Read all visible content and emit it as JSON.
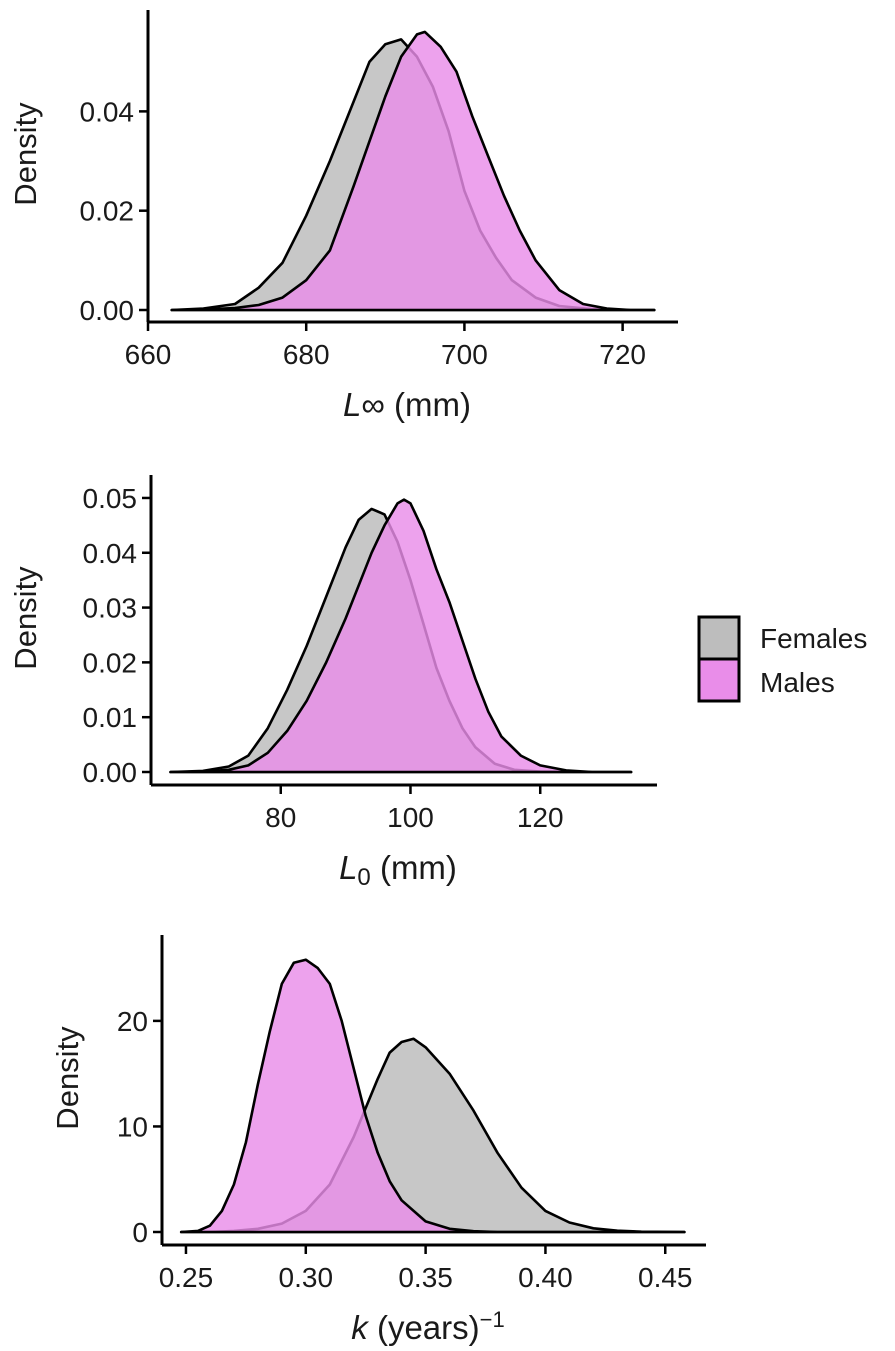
{
  "legend": {
    "items": [
      {
        "label": "Females",
        "color": "#bdbdbd"
      },
      {
        "label": "Males",
        "color": "#e98de9"
      }
    ]
  },
  "chart_data": [
    {
      "type": "area",
      "ylabel": "Density",
      "xlabel": {
        "main": "L",
        "sub": "∞",
        "unit": " (mm)"
      },
      "xlim": [
        660,
        727
      ],
      "ylim": [
        0,
        0.058
      ],
      "xticks": [
        660,
        680,
        700,
        720
      ],
      "xtick_labels": [
        "660",
        "680",
        "700",
        "720"
      ],
      "yticks": [
        0,
        0.02,
        0.04
      ],
      "ytick_labels": [
        "0.00",
        "0.02",
        "0.04"
      ],
      "series": [
        {
          "name": "Females",
          "color": "#bdbdbd",
          "x": [
            663,
            667,
            671,
            674,
            677,
            680,
            683,
            686,
            688,
            690,
            692,
            694,
            696,
            698,
            700,
            702,
            704,
            706,
            709,
            712,
            716,
            720,
            724
          ],
          "y": [
            0.0,
            0.0003,
            0.0012,
            0.0045,
            0.0095,
            0.019,
            0.03,
            0.042,
            0.05,
            0.0535,
            0.0545,
            0.051,
            0.045,
            0.036,
            0.024,
            0.016,
            0.0105,
            0.006,
            0.0025,
            0.0008,
            0.0002,
            0.0,
            0.0
          ]
        },
        {
          "name": "Males",
          "color": "#e98de9",
          "x": [
            663,
            667,
            671,
            674,
            677,
            680,
            683,
            686,
            688,
            690,
            692,
            694,
            695,
            697,
            699,
            701,
            703,
            705,
            707,
            709,
            712,
            715,
            718,
            721,
            724
          ],
          "y": [
            0.0,
            0.0001,
            0.0004,
            0.001,
            0.0025,
            0.006,
            0.012,
            0.025,
            0.034,
            0.043,
            0.051,
            0.0555,
            0.056,
            0.053,
            0.048,
            0.039,
            0.031,
            0.023,
            0.016,
            0.01,
            0.004,
            0.0012,
            0.0003,
            0.0,
            0.0
          ]
        }
      ]
    },
    {
      "type": "area",
      "ylabel": "Density",
      "xlabel": {
        "main": "L",
        "sub": "0",
        "unit": " (mm)"
      },
      "xlim": [
        60,
        138
      ],
      "ylim": [
        0,
        0.052
      ],
      "xticks": [
        80,
        100,
        120
      ],
      "xtick_labels": [
        "80",
        "100",
        "120"
      ],
      "yticks": [
        0,
        0.01,
        0.02,
        0.03,
        0.04,
        0.05
      ],
      "ytick_labels": [
        "0.00",
        "0.01",
        "0.02",
        "0.03",
        "0.04",
        "0.05"
      ],
      "series": [
        {
          "name": "Females",
          "color": "#bdbdbd",
          "x": [
            63,
            68,
            72,
            75,
            78,
            81,
            84,
            87,
            90,
            92,
            94,
            96,
            98,
            100,
            102,
            104,
            106,
            108,
            110,
            113,
            116,
            120,
            126,
            134
          ],
          "y": [
            0.0,
            0.0002,
            0.001,
            0.003,
            0.008,
            0.015,
            0.023,
            0.032,
            0.041,
            0.046,
            0.048,
            0.047,
            0.042,
            0.035,
            0.027,
            0.019,
            0.013,
            0.008,
            0.0045,
            0.0015,
            0.0004,
            0.0001,
            0.0,
            0.0
          ]
        },
        {
          "name": "Males",
          "color": "#e98de9",
          "x": [
            63,
            68,
            72,
            75,
            78,
            81,
            84,
            87,
            90,
            92,
            94,
            96,
            98,
            99,
            100,
            102,
            104,
            106,
            108,
            110,
            112,
            114,
            117,
            120,
            124,
            128,
            134
          ],
          "y": [
            0.0,
            0.0001,
            0.0004,
            0.0012,
            0.0035,
            0.0075,
            0.013,
            0.02,
            0.028,
            0.034,
            0.04,
            0.045,
            0.049,
            0.0497,
            0.049,
            0.044,
            0.037,
            0.031,
            0.024,
            0.017,
            0.011,
            0.0065,
            0.003,
            0.0012,
            0.0003,
            0.0,
            0.0
          ]
        }
      ]
    },
    {
      "type": "area",
      "ylabel": "Density",
      "xlabel": {
        "main": "k",
        "sub": "",
        "unit": " (years)",
        "sup": "−1"
      },
      "xlim": [
        0.24,
        0.467
      ],
      "ylim": [
        0,
        27
      ],
      "xticks": [
        0.25,
        0.3,
        0.35,
        0.4,
        0.45
      ],
      "xtick_labels": [
        "0.25",
        "0.30",
        "0.35",
        "0.40",
        "0.45"
      ],
      "yticks": [
        0,
        10,
        20
      ],
      "ytick_labels": [
        "0",
        "10",
        "20"
      ],
      "series": [
        {
          "name": "Females",
          "color": "#bdbdbd",
          "x": [
            0.248,
            0.26,
            0.27,
            0.28,
            0.29,
            0.3,
            0.31,
            0.32,
            0.33,
            0.335,
            0.34,
            0.345,
            0.35,
            0.36,
            0.37,
            0.38,
            0.39,
            0.4,
            0.41,
            0.42,
            0.43,
            0.44,
            0.458
          ],
          "y": [
            0,
            0.0,
            0.1,
            0.3,
            0.8,
            2.0,
            4.5,
            9.0,
            14.5,
            17.0,
            18.0,
            18.3,
            17.5,
            15.0,
            11.5,
            7.5,
            4.2,
            2.0,
            0.9,
            0.35,
            0.12,
            0.03,
            0.0
          ]
        },
        {
          "name": "Males",
          "color": "#e98de9",
          "x": [
            0.248,
            0.255,
            0.26,
            0.265,
            0.27,
            0.275,
            0.28,
            0.285,
            0.29,
            0.295,
            0.3,
            0.305,
            0.31,
            0.315,
            0.32,
            0.325,
            0.33,
            0.335,
            0.34,
            0.35,
            0.36,
            0.37,
            0.38,
            0.458
          ],
          "y": [
            0,
            0.1,
            0.6,
            2.0,
            4.5,
            8.5,
            14.0,
            19.0,
            23.5,
            25.5,
            25.8,
            25.0,
            23.5,
            20.0,
            15.5,
            11.0,
            7.5,
            4.8,
            3.0,
            1.0,
            0.3,
            0.08,
            0.0,
            0.0
          ]
        }
      ]
    }
  ]
}
